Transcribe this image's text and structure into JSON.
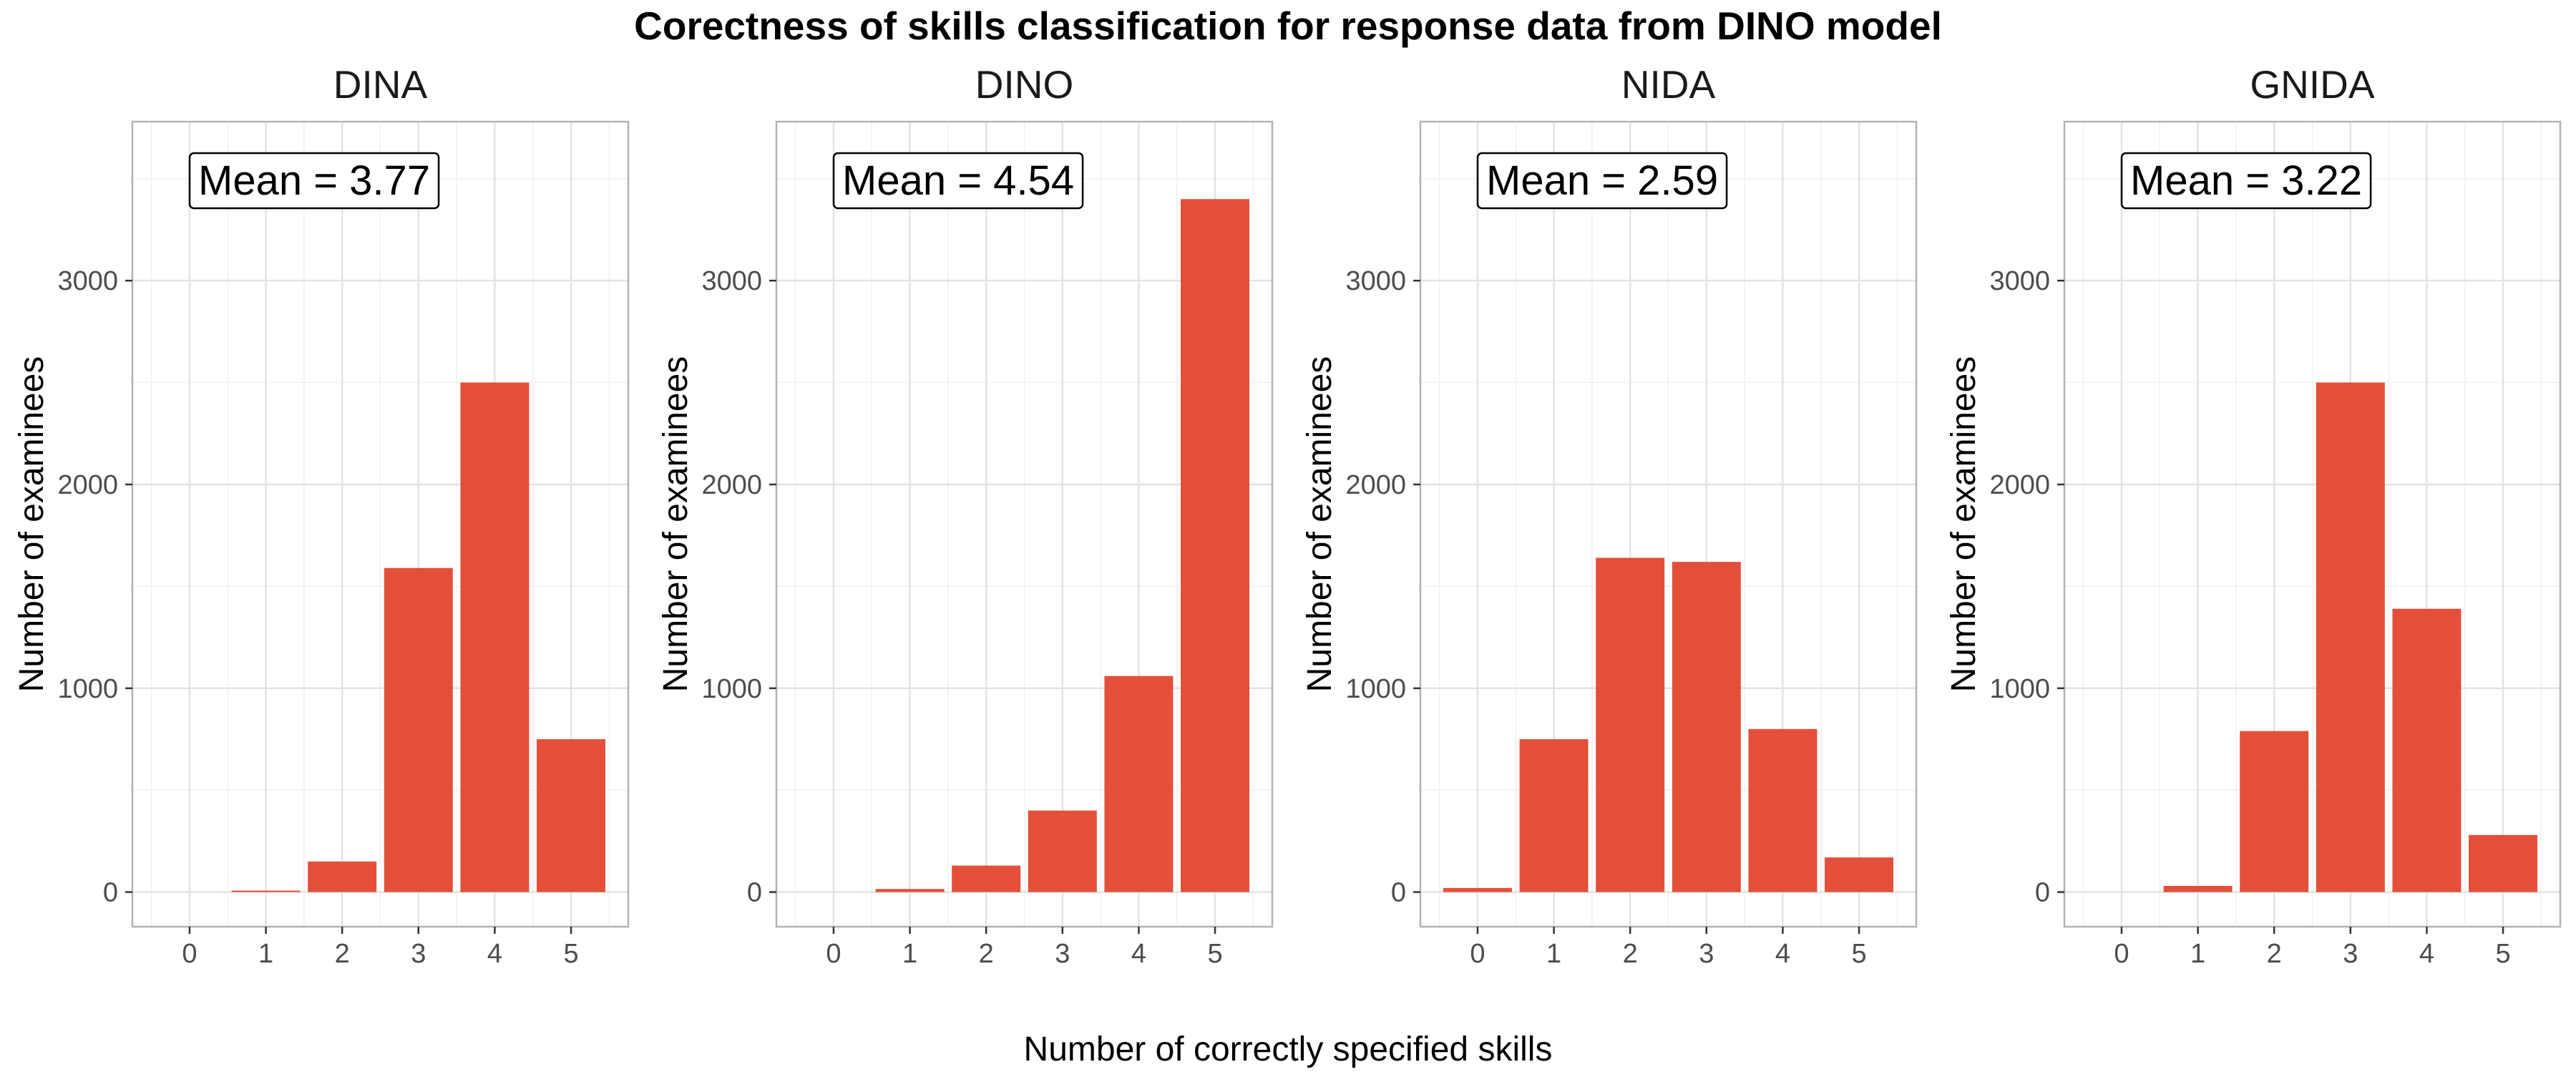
{
  "chart_data": {
    "type": "bar",
    "title": "Corectness of skills classification for response data from DINO model",
    "xlabel": "Number of correctly specified skills",
    "ylabel": "Number of examinees",
    "bar_color": "#E34F38",
    "grid": true,
    "ylim": [
      -170,
      3780
    ],
    "yticks": [
      0,
      1000,
      2000,
      3000
    ],
    "categories": [
      "0",
      "1",
      "2",
      "3",
      "4",
      "5"
    ],
    "panels": [
      {
        "title": "DINA",
        "mean_label": "Mean = 3.77",
        "values": [
          0,
          5,
          150,
          1590,
          2500,
          750
        ]
      },
      {
        "title": "DINO",
        "mean_label": "Mean = 4.54",
        "values": [
          0,
          15,
          130,
          400,
          1060,
          3400
        ]
      },
      {
        "title": "NIDA",
        "mean_label": "Mean = 2.59",
        "values": [
          20,
          750,
          1640,
          1620,
          800,
          170
        ]
      },
      {
        "title": "GNIDA",
        "mean_label": "Mean = 3.22",
        "values": [
          0,
          30,
          790,
          2500,
          1390,
          280
        ]
      }
    ]
  }
}
